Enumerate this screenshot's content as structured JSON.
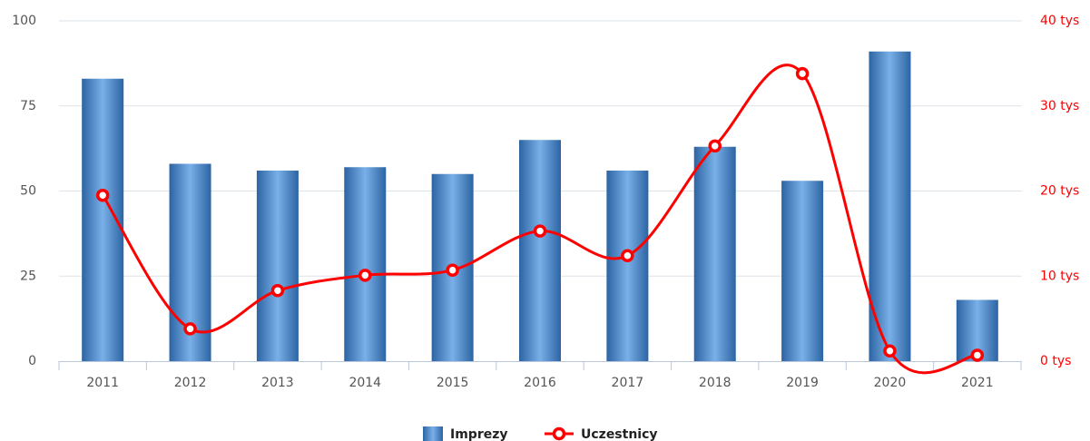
{
  "chart_data": {
    "type": "bar_line",
    "categories": [
      "2011",
      "2012",
      "2013",
      "2014",
      "2015",
      "2016",
      "2017",
      "2018",
      "2019",
      "2020",
      "2021"
    ],
    "series": [
      {
        "name": "Imprezy",
        "type": "bar",
        "color": "#3d7cc0",
        "values": [
          83,
          58,
          56,
          57,
          55,
          65,
          56,
          63,
          53,
          91,
          18
        ]
      },
      {
        "name": "Uczestnicy",
        "type": "line",
        "axis": "y2",
        "color": "#ff0000",
        "values": [
          19.5,
          3.8,
          8.3,
          10.1,
          10.7,
          15.3,
          12.4,
          25.3,
          33.8,
          1.2,
          0.7
        ]
      }
    ],
    "ylim": [
      0,
      100
    ],
    "yticks": [
      0,
      25,
      50,
      75,
      100
    ],
    "y2lim": [
      0,
      40
    ],
    "y2ticks": [
      {
        "value": 0,
        "label": "0 tys"
      },
      {
        "value": 10,
        "label": "10 tys"
      },
      {
        "value": 20,
        "label": "20 tys"
      },
      {
        "value": 30,
        "label": "30 tys"
      },
      {
        "value": 40,
        "label": "40 tys"
      }
    ],
    "grid": true,
    "legend": "bottom"
  }
}
